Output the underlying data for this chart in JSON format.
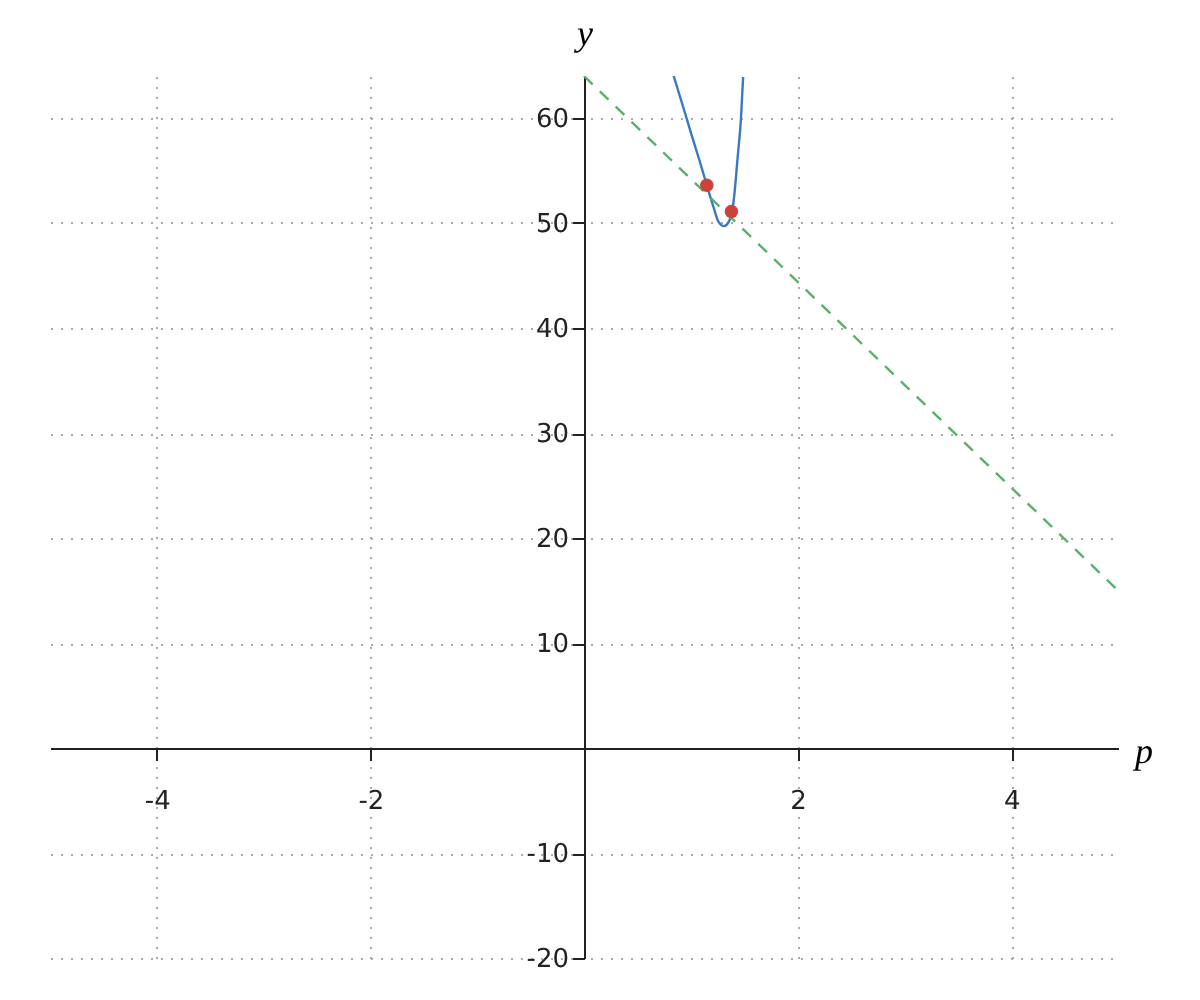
{
  "chart_data": {
    "type": "line",
    "xlabel": "p",
    "ylabel": "y",
    "xlim": [
      -5,
      5
    ],
    "ylim": [
      -20,
      64
    ],
    "xticks": [
      -4,
      -2,
      2,
      4
    ],
    "yticks": [
      -20,
      -10,
      10,
      20,
      30,
      40,
      50,
      60
    ],
    "grid": true,
    "series": [
      {
        "color": "#3a78c3",
        "x": [
          0.84,
          0.93,
          1.01,
          1.08,
          1.15,
          1.21,
          1.26,
          1.31,
          1.36,
          1.4,
          1.44,
          1.47,
          1.49
        ],
        "values": [
          64,
          61,
          58.3,
          56,
          53.6,
          51.6,
          50.1,
          49.7,
          50.2,
          52,
          56.4,
          60,
          63.9
        ]
      },
      {
        "type": "line",
        "line_style": "dashed",
        "color": "#5ab06a",
        "x": [
          0,
          5
        ],
        "values": [
          64,
          15
        ]
      },
      {
        "type": "scatter",
        "color": "#d0403a",
        "x": [
          1.15,
          1.38
        ],
        "values": [
          53.6,
          51.1
        ]
      }
    ]
  }
}
